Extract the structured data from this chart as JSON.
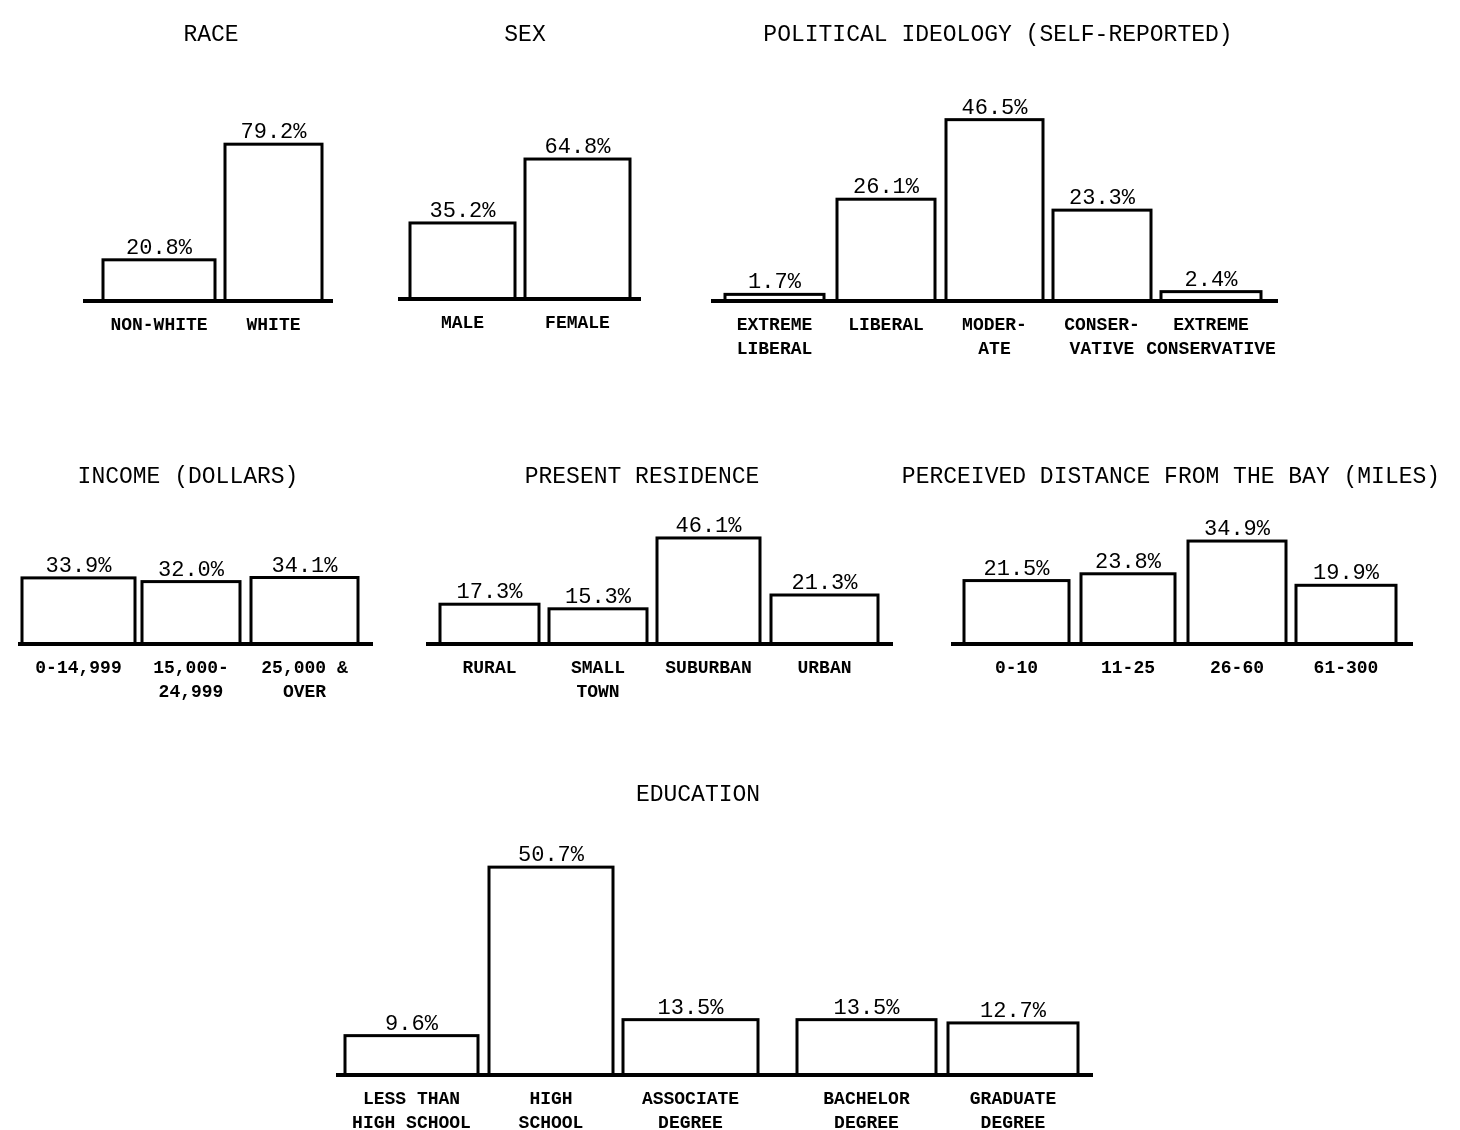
{
  "chart_data": [
    {
      "type": "bar",
      "title": "RACE",
      "categories": [
        "NON-WHITE",
        "WHITE"
      ],
      "values": [
        20.8,
        79.2
      ],
      "value_labels": [
        "20.8%",
        "79.2%"
      ],
      "color": "#ffffff"
    },
    {
      "type": "bar",
      "title": "SEX",
      "categories": [
        "MALE",
        "FEMALE"
      ],
      "values": [
        35.2,
        64.8
      ],
      "value_labels": [
        "35.2%",
        "64.8%"
      ],
      "color": "#ffffff"
    },
    {
      "type": "bar",
      "title": "POLITICAL IDEOLOGY (SELF-REPORTED)",
      "categories": [
        "EXTREME\nLIBERAL",
        "LIBERAL",
        "MODER-\nATE",
        "CONSER-\nVATIVE",
        "EXTREME\nCONSERVATIVE"
      ],
      "values": [
        1.7,
        26.1,
        46.5,
        23.3,
        2.4
      ],
      "value_labels": [
        "1.7%",
        "26.1%",
        "46.5%",
        "23.3%",
        "2.4%"
      ],
      "color": "#ffffff"
    },
    {
      "type": "bar",
      "title": "INCOME (DOLLARS)",
      "categories": [
        "0-14,999",
        "15,000-\n24,999",
        "25,000 &\nOVER"
      ],
      "values": [
        33.9,
        32.0,
        34.1
      ],
      "value_labels": [
        "33.9%",
        "32.0%",
        "34.1%"
      ],
      "color": "#ffffff"
    },
    {
      "type": "bar",
      "title": "PRESENT RESIDENCE",
      "categories": [
        "RURAL",
        "SMALL\nTOWN",
        "SUBURBAN",
        "URBAN"
      ],
      "values": [
        17.3,
        15.3,
        46.1,
        21.3
      ],
      "value_labels": [
        "17.3%",
        "15.3%",
        "46.1%",
        "21.3%"
      ],
      "color": "#ffffff"
    },
    {
      "type": "bar",
      "title": "PERCEIVED DISTANCE FROM THE BAY (MILES)",
      "categories": [
        "0-10",
        "11-25",
        "26-60",
        "61-300"
      ],
      "values": [
        21.5,
        23.8,
        34.9,
        19.9
      ],
      "value_labels": [
        "21.5%",
        "23.8%",
        "34.9%",
        "19.9%"
      ],
      "color": "#ffffff"
    },
    {
      "type": "bar",
      "title": "EDUCATION",
      "categories": [
        "LESS THAN\nHIGH SCHOOL",
        "HIGH\nSCHOOL",
        "ASSOCIATE\nDEGREE",
        "BACHELOR\nDEGREE",
        "GRADUATE\nDEGREE"
      ],
      "values": [
        9.6,
        50.7,
        13.5,
        13.5,
        12.7
      ],
      "value_labels": [
        "9.6%",
        "50.7%",
        "13.5%",
        "13.5%",
        "12.7%"
      ],
      "color": "#ffffff"
    }
  ]
}
